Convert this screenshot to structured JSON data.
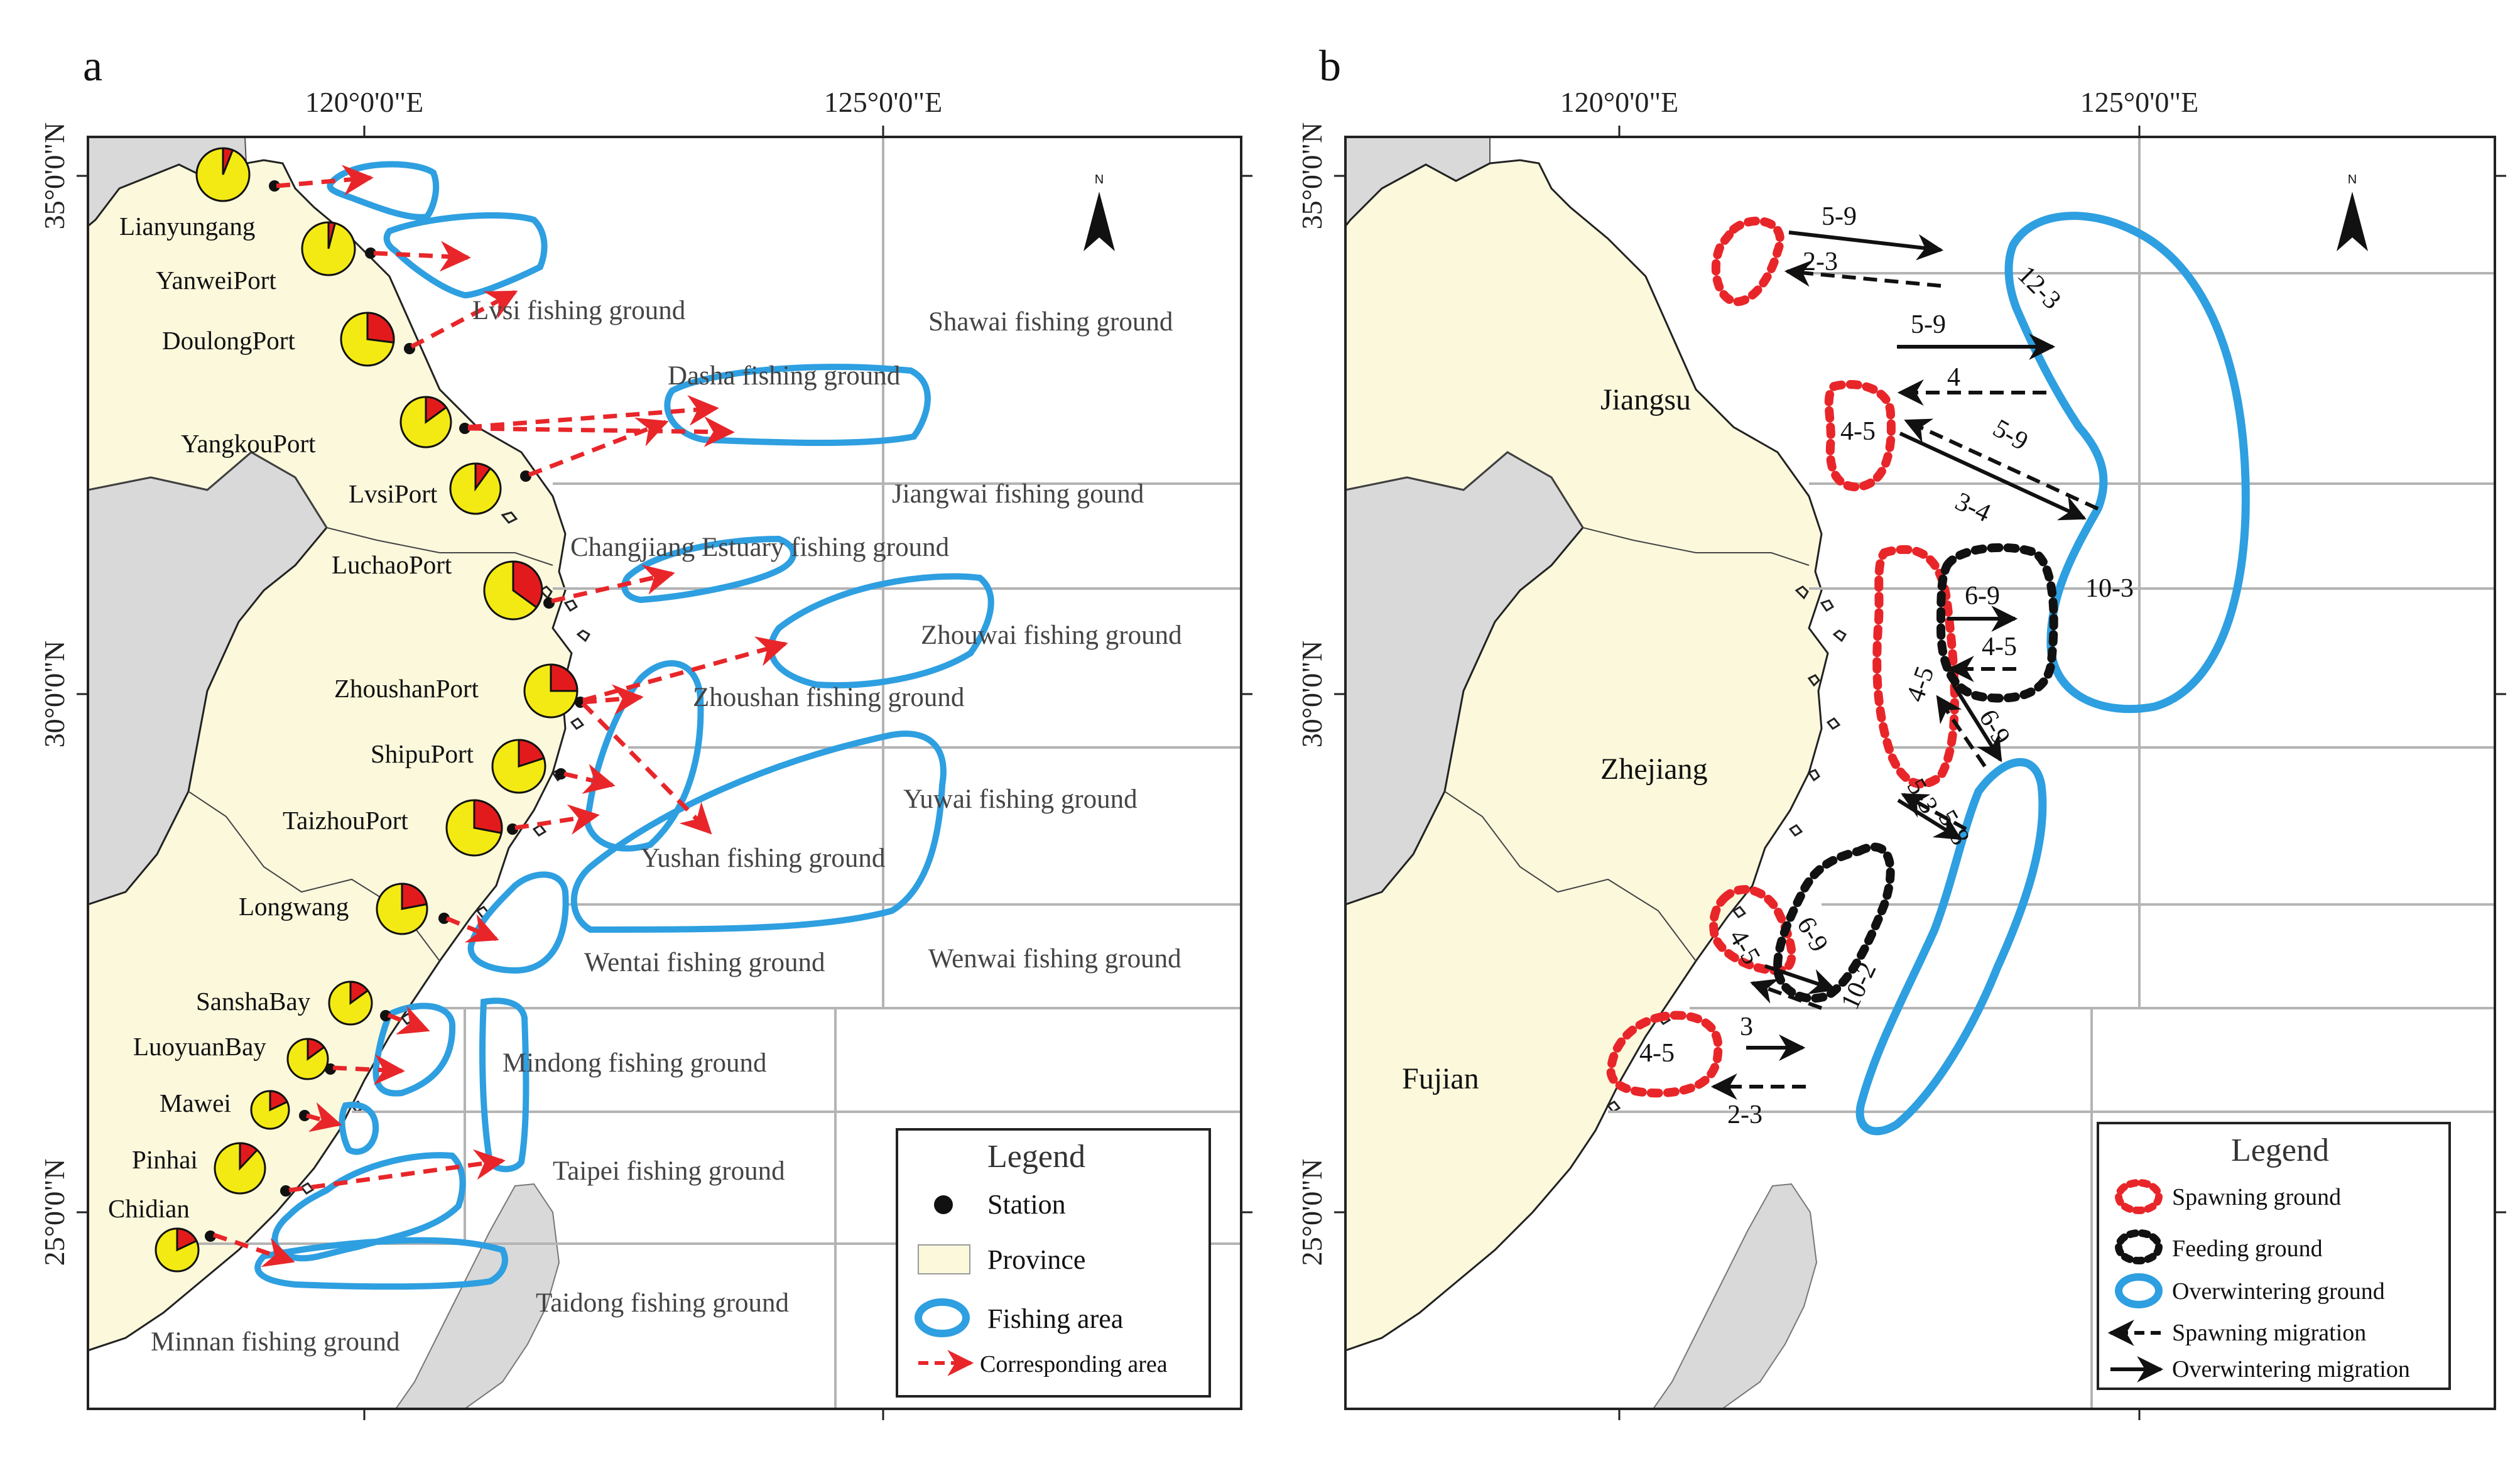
{
  "panels": {
    "a": {
      "letter": "a",
      "lon_labels": [
        "120°0'0\"E",
        "125°0'0\"E"
      ],
      "lat_labels": [
        "35°0'0\"N",
        "30°0'0\"N",
        "25°0'0\"N"
      ],
      "north_label": "N",
      "ports": [
        "Lianyungang",
        "YanweiPort",
        "DoulongPort",
        "YangkouPort",
        "LvsiPort",
        "LuchaoPort",
        "ZhoushanPort",
        "ShipuPort",
        "TaizhouPort",
        "Longwang",
        "SanshaBay",
        "LuoyuanBay",
        "Mawei",
        "Pinhai",
        "Chidian"
      ],
      "port_shares": [
        0.06,
        0.04,
        0.27,
        0.15,
        0.1,
        0.35,
        0.25,
        0.2,
        0.28,
        0.22,
        0.15,
        0.15,
        0.18,
        0.12,
        0.18
      ],
      "fishing_grounds": [
        "Lvsi fishing ground",
        "Shawai fishing ground",
        "Dasha fishing ground",
        "Jiangwai fishing gound",
        "Changjiang Estuary fishing ground",
        "Zhouwai fishing ground",
        "Zhoushan fishing ground",
        "Yuwai fishing ground",
        "Yushan fishing ground",
        "Wentai fishing ground",
        "Wenwai fishing ground",
        "Mindong fishing ground",
        "Taipei fishing ground",
        "Taidong fishing ground",
        "Minnan fishing ground"
      ],
      "legend": {
        "title": "Legend",
        "items": [
          "Station",
          "Province",
          "Fishing area",
          "Corresponding area"
        ]
      }
    },
    "b": {
      "letter": "b",
      "lon_labels": [
        "120°0'0\"E",
        "125°0'0\"E"
      ],
      "lat_labels": [
        "35°0'0\"N",
        "30°0'0\"N",
        "25°0'0\"N"
      ],
      "north_label": "N",
      "provinces": [
        "Jiangsu",
        "Zhejiang",
        "Fujian"
      ],
      "migration_labels": [
        "5-9",
        "2-3",
        "12-3",
        "5-9",
        "4",
        "4-5",
        "5-9",
        "3-4",
        "10-3",
        "6-9",
        "4-5",
        "4-5",
        "6-9",
        "5-3",
        "5-8",
        "4-5",
        "6-9",
        "10-2",
        "3",
        "4-5",
        "2-3"
      ],
      "legend": {
        "title": "Legend",
        "items": [
          "Spawning ground",
          "Feeding ground",
          "Overwintering ground",
          "Spawning migration",
          "Overwintering migration"
        ]
      }
    }
  },
  "colors": {
    "province": "#fbf8dc",
    "land_other": "#d9d9d9",
    "fishing_area": "#2e9fe0",
    "corresponding": "#e8262a",
    "spawning": "#e8262a",
    "feeding": "#111111",
    "pie_main": "#f4ea13",
    "pie_share": "#e31a1c",
    "grid": "#b4b4b4"
  }
}
